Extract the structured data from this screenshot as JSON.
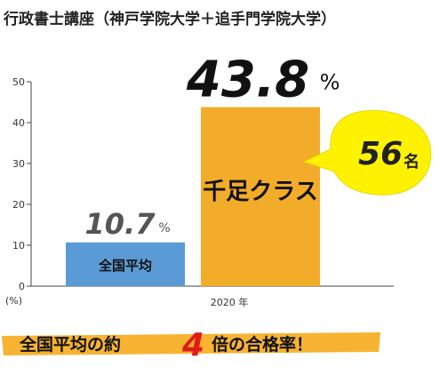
{
  "header": {
    "title": "行政書士講座（神戸学院大学＋追手門学院大学）"
  },
  "chart_data": {
    "type": "bar",
    "categories": [
      "全国平均",
      "千足クラス"
    ],
    "values": [
      10.7,
      43.8
    ],
    "value_labels": [
      "10.7",
      "43.8"
    ],
    "value_unit": "%",
    "ylim": [
      0,
      50
    ],
    "yticks": [
      0,
      10,
      20,
      30,
      40,
      50
    ],
    "ylabel": "(%)",
    "xlabel": "2020 年",
    "grid": false,
    "colors": {
      "national": "#5b9bd5",
      "class": "#f2ac2a",
      "axis": "#444444",
      "bubble": "#fff200",
      "banner": "#f7b331",
      "national_value": "#555555"
    }
  },
  "callout": {
    "number": "56",
    "unit": "名"
  },
  "banner": {
    "prefix": "全国平均の約",
    "multiplier": "4",
    "suffix": "倍の合格率！"
  }
}
